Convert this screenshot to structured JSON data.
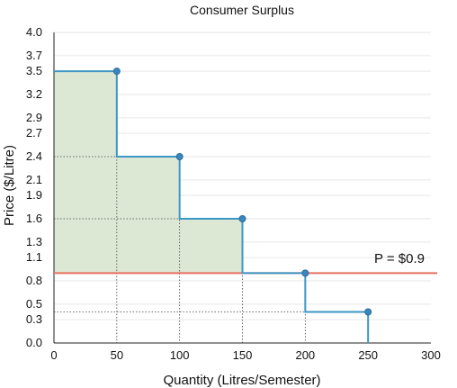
{
  "chart_data": {
    "type": "line",
    "title": "Consumer Surplus",
    "xlabel": "Quantity (Litres/Semester)",
    "ylabel": "Price ($/Litre)",
    "xlim": [
      0,
      300
    ],
    "ylim": [
      0,
      4.0
    ],
    "x_ticks": [
      0,
      50,
      100,
      150,
      200,
      250,
      300
    ],
    "y_ticks": [
      0.0,
      0.3,
      0.5,
      0.8,
      1.1,
      1.3,
      1.6,
      1.9,
      2.1,
      2.4,
      2.7,
      2.9,
      3.2,
      3.5,
      3.7,
      4.0
    ],
    "y_tick_labels": [
      "0.0",
      "0.3",
      "0.5",
      "0.8",
      "1.1",
      "1.3",
      "1.6",
      "1.9",
      "2.1",
      "2.4",
      "2.7",
      "2.9",
      "3.2",
      "3.5",
      "3.7",
      "4.0"
    ],
    "grid": true,
    "demand_points": [
      {
        "x": 50,
        "y": 3.5
      },
      {
        "x": 100,
        "y": 2.4
      },
      {
        "x": 150,
        "y": 1.6
      },
      {
        "x": 200,
        "y": 0.9
      },
      {
        "x": 250,
        "y": 0.4
      }
    ],
    "price_line": {
      "value": 0.9,
      "label": "P = $0.9"
    },
    "colors": {
      "demand": "#3d97c4",
      "points": "#3a86bd",
      "price_line": "#e8705f",
      "surplus_fill": "#dde8d4",
      "grid": "#e6e6e6",
      "guide": "#444444"
    }
  }
}
